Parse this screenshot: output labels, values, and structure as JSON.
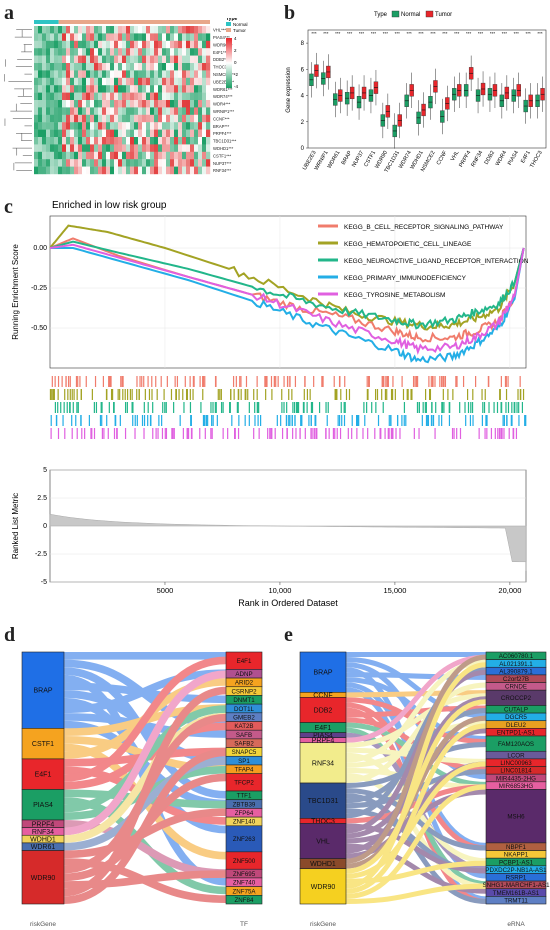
{
  "panels": {
    "a": "a",
    "b": "b",
    "c": "c",
    "d": "d",
    "e": "e"
  },
  "heatmap": {
    "legend_title": "Type",
    "legend_normal": "Normal",
    "legend_tumor": "Tumor",
    "scale_ticks": [
      "4",
      "2",
      "0",
      "-2",
      "-4"
    ],
    "genes": [
      "VHL***",
      "PIAS4***",
      "WDR90***",
      "E4F1***",
      "DDB2**",
      "THOC3***",
      "NSMCE2***",
      "UBE2E3***",
      "WDR61***",
      "WDR74***",
      "WDR4***",
      "WRNIP1***",
      "CCNF***",
      "BRAP***",
      "PRPF4***",
      "TBC1D31***",
      "WDHD1***",
      "CSTF1***",
      "NUP37***",
      "RNF34***"
    ],
    "colors": {
      "high": "#e8262b",
      "mid": "#ffffff",
      "low": "#1b9e64",
      "normal": "#2ec4c4",
      "tumor": "#e8a78a"
    }
  },
  "boxplot": {
    "legend_title": "Type",
    "legend_normal": "Normal",
    "legend_tumor": "Tumor",
    "colors": {
      "normal": "#1b9e64",
      "tumor": "#e8262b"
    }
  },
  "chart_data": [
    {
      "type": "box",
      "ylabel": "Gene expression",
      "ylim": [
        0,
        9
      ],
      "yticks": [
        "0",
        "2",
        "4",
        "6",
        "8"
      ],
      "categories": [
        "UBE2E3",
        "WRNIP1",
        "WDR61",
        "BRAP",
        "NUP37",
        "CSTF1",
        "WDR90",
        "TBC1D31",
        "WDR74",
        "WDHD1",
        "NSMCE2",
        "CCNF",
        "VHL",
        "PRPF4",
        "RNF34",
        "DDB2",
        "WDR4",
        "PIAS4",
        "E4F1",
        "THOC3"
      ],
      "significance": "***",
      "series": [
        {
          "name": "Normal",
          "medians": [
            5.2,
            5.3,
            3.7,
            3.8,
            3.5,
            4.0,
            2.1,
            1.3,
            3.6,
            2.3,
            3.5,
            2.4,
            4.1,
            4.4,
            4.0,
            4.1,
            3.6,
            4.0,
            3.2,
            3.6
          ]
        },
        {
          "name": "Tumor",
          "medians": [
            5.9,
            5.8,
            4.0,
            4.2,
            4.2,
            4.6,
            2.8,
            2.1,
            4.4,
            2.9,
            4.7,
            3.4,
            4.4,
            5.7,
            4.5,
            4.4,
            4.2,
            4.4,
            3.6,
            4.1
          ]
        }
      ]
    },
    {
      "type": "line",
      "title": "Enriched in low risk group",
      "ylabel": "Running Enrichment Score",
      "ylabel2": "Ranked List Metric",
      "xlabel": "Rank in Ordered Dataset",
      "x_ticks": [
        "5000",
        "10,000",
        "15,000",
        "20,000"
      ],
      "y_ticks": [
        "0.00",
        "-0.25",
        "-0.50"
      ],
      "y2_ticks": [
        "5",
        "2.5",
        "0",
        "-2.5",
        "-5"
      ],
      "xlim": [
        0,
        20700
      ],
      "ylim": [
        -0.75,
        0.2
      ],
      "series": [
        {
          "name": "KEGG_B_CELL_RECEPTOR_SIGNALING_PATHWAY",
          "color": "#f07c6c",
          "x": [
            0,
            1000,
            3000,
            6000,
            9000,
            11000,
            13000,
            15000,
            16000,
            17500,
            18500,
            19500,
            20200,
            20600
          ],
          "y": [
            0.0,
            0.06,
            -0.05,
            -0.18,
            -0.3,
            -0.38,
            -0.44,
            -0.52,
            -0.56,
            -0.56,
            -0.52,
            -0.46,
            -0.3,
            0.0
          ]
        },
        {
          "name": "KEGG_HEMATOPOIETIC_CELL_LINEAGE",
          "color": "#a3a324",
          "x": [
            0,
            800,
            2500,
            5000,
            8000,
            11000,
            13000,
            15000,
            16500,
            17500,
            18500,
            19500,
            20200,
            20600
          ],
          "y": [
            0.0,
            0.14,
            0.1,
            0.0,
            -0.14,
            -0.3,
            -0.4,
            -0.46,
            -0.49,
            -0.48,
            -0.44,
            -0.38,
            -0.22,
            0.0
          ]
        },
        {
          "name": "KEGG_NEUROACTIVE_LIGAND_RECEPTOR_INTERACTION",
          "color": "#22b68a",
          "x": [
            0,
            1000,
            3000,
            6000,
            9000,
            11000,
            13000,
            15000,
            16000,
            17500,
            18500,
            19500,
            20200,
            20600
          ],
          "y": [
            0.0,
            0.04,
            -0.03,
            -0.13,
            -0.25,
            -0.33,
            -0.4,
            -0.45,
            -0.48,
            -0.45,
            -0.4,
            -0.35,
            -0.22,
            0.0
          ]
        },
        {
          "name": "KEGG_PRIMARY_IMMUNODEFICIENCY",
          "color": "#23aee6",
          "x": [
            0,
            1000,
            3000,
            6000,
            9000,
            11000,
            13000,
            15000,
            16000,
            17500,
            18500,
            19500,
            20200,
            20600
          ],
          "y": [
            0.0,
            0.0,
            -0.08,
            -0.2,
            -0.34,
            -0.45,
            -0.55,
            -0.64,
            -0.7,
            -0.68,
            -0.6,
            -0.5,
            -0.32,
            0.0
          ]
        },
        {
          "name": "KEGG_TYROSINE_METABOLISM",
          "color": "#e060e0",
          "x": [
            0,
            1000,
            3000,
            6000,
            9000,
            11000,
            13000,
            15000,
            16000,
            17500,
            18500,
            19500,
            20200,
            20600
          ],
          "y": [
            0.0,
            0.02,
            -0.06,
            -0.18,
            -0.3,
            -0.4,
            -0.5,
            -0.58,
            -0.63,
            -0.62,
            -0.56,
            -0.47,
            -0.3,
            0.0
          ]
        }
      ]
    }
  ],
  "sankey_d": {
    "left_label": "riskGene",
    "right_label": "TF",
    "left": [
      {
        "name": "BRAP",
        "color": "#1f6fe6",
        "weight": 10
      },
      {
        "name": "CSTF1",
        "color": "#f5a31f",
        "weight": 4
      },
      {
        "name": "E4F1",
        "color": "#e8262b",
        "weight": 4
      },
      {
        "name": "PIAS4",
        "color": "#1b9e64",
        "weight": 4
      },
      {
        "name": "PRPF4",
        "color": "#c0487a",
        "weight": 1
      },
      {
        "name": "RNF34",
        "color": "#e65fa0",
        "weight": 1
      },
      {
        "name": "WDHD1",
        "color": "#f0d35c",
        "weight": 1
      },
      {
        "name": "WDR61",
        "color": "#4a6fae",
        "weight": 1
      },
      {
        "name": "WDR90",
        "color": "#d62a2a",
        "weight": 7
      }
    ],
    "right": [
      {
        "name": "E4F1",
        "color": "#e8262b",
        "weight": 2
      },
      {
        "name": "ADNP",
        "color": "#b05090",
        "weight": 1
      },
      {
        "name": "ARID2",
        "color": "#f5a31f",
        "weight": 1
      },
      {
        "name": "CSRNP2",
        "color": "#f5c838",
        "weight": 1
      },
      {
        "name": "DNMT1",
        "color": "#1b9e64",
        "weight": 1
      },
      {
        "name": "DOT1L",
        "color": "#2f8fd8",
        "weight": 1
      },
      {
        "name": "GMEB2",
        "color": "#5e7fc4",
        "weight": 1
      },
      {
        "name": "KAT2B",
        "color": "#e25b5b",
        "weight": 1
      },
      {
        "name": "SAFB",
        "color": "#c45a8a",
        "weight": 1
      },
      {
        "name": "SAFB2",
        "color": "#d66a5a",
        "weight": 1
      },
      {
        "name": "SNAPC5",
        "color": "#f2d53a",
        "weight": 1
      },
      {
        "name": "SP1",
        "color": "#2f8fd8",
        "weight": 1
      },
      {
        "name": "TFAP4",
        "color": "#f59d1f",
        "weight": 1
      },
      {
        "name": "TFCP2",
        "color": "#e8262b",
        "weight": 2
      },
      {
        "name": "TTF1",
        "color": "#1b9e64",
        "weight": 1
      },
      {
        "name": "ZBTB39",
        "color": "#4a6fae",
        "weight": 1
      },
      {
        "name": "ZFP64",
        "color": "#e65fa0",
        "weight": 1
      },
      {
        "name": "ZNF140",
        "color": "#f0d35c",
        "weight": 1
      },
      {
        "name": "ZNF263",
        "color": "#2a5ab8",
        "weight": 3
      },
      {
        "name": "ZNF500",
        "color": "#e8262b",
        "weight": 2
      },
      {
        "name": "ZNF695",
        "color": "#c0487a",
        "weight": 1
      },
      {
        "name": "ZNF740",
        "color": "#e65fa0",
        "weight": 1
      },
      {
        "name": "ZNF75A",
        "color": "#f5a31f",
        "weight": 1
      },
      {
        "name": "ZNF84",
        "color": "#1b9e64",
        "weight": 1
      }
    ]
  },
  "sankey_e": {
    "left_label": "riskGene",
    "right_label": "eRNA",
    "left": [
      {
        "name": "BRAP",
        "color": "#1f6fe6",
        "weight": 8
      },
      {
        "name": "CCNF",
        "color": "#f5a31f",
        "weight": 1
      },
      {
        "name": "DDB2",
        "color": "#e8262b",
        "weight": 5
      },
      {
        "name": "E4F1",
        "color": "#1b9e64",
        "weight": 2
      },
      {
        "name": "PIAS4",
        "color": "#5e3f8a",
        "weight": 1
      },
      {
        "name": "PRPF4",
        "color": "#e65fa0",
        "weight": 1
      },
      {
        "name": "RNF34",
        "color": "#f2ec8c",
        "weight": 8
      },
      {
        "name": "TBC1D31",
        "color": "#2a4a8a",
        "weight": 7
      },
      {
        "name": "THOC3",
        "color": "#e8262b",
        "weight": 1
      },
      {
        "name": "VHL",
        "color": "#5a2a6a",
        "weight": 7
      },
      {
        "name": "WDHD1",
        "color": "#8a4a2a",
        "weight": 2
      },
      {
        "name": "WDR90",
        "color": "#f5d020",
        "weight": 7
      }
    ],
    "right": [
      {
        "name": "AC060780.1",
        "color": "#1b9e64",
        "weight": 1
      },
      {
        "name": "AL021391.1",
        "color": "#23aee6",
        "weight": 1
      },
      {
        "name": "AL390879.1",
        "color": "#2a6fd8",
        "weight": 1
      },
      {
        "name": "C2orf27B",
        "color": "#b04a5a",
        "weight": 1
      },
      {
        "name": "CRNDE",
        "color": "#c45a8a",
        "weight": 1
      },
      {
        "name": "CROCCP2",
        "color": "#5a3a6a",
        "weight": 2
      },
      {
        "name": "CUTALP",
        "color": "#1b9e64",
        "weight": 1
      },
      {
        "name": "DGCR5",
        "color": "#23aee6",
        "weight": 1
      },
      {
        "name": "DLEU2",
        "color": "#e8a020",
        "weight": 1
      },
      {
        "name": "ENTPD1-AS1",
        "color": "#e8262b",
        "weight": 1
      },
      {
        "name": "FAM120AOS",
        "color": "#1b9e64",
        "weight": 2
      },
      {
        "name": "LCOR",
        "color": "#6a5a9a",
        "weight": 1
      },
      {
        "name": "LINC00963",
        "color": "#e8262b",
        "weight": 1
      },
      {
        "name": "LINC01814",
        "color": "#d62a2a",
        "weight": 1
      },
      {
        "name": "MIR4435-2HG",
        "color": "#c0487a",
        "weight": 1
      },
      {
        "name": "MIR6853HG",
        "color": "#e65fa0",
        "weight": 1
      },
      {
        "name": "MSH6",
        "color": "#5a2a6a",
        "weight": 7
      },
      {
        "name": "NBPF1",
        "color": "#b06040",
        "weight": 1
      },
      {
        "name": "NKAPP1",
        "color": "#f5c838",
        "weight": 1
      },
      {
        "name": "PCBP1-AS1",
        "color": "#1b9e64",
        "weight": 1
      },
      {
        "name": "PDXDC2P-NB1A-AS1",
        "color": "#23aee6",
        "weight": 1
      },
      {
        "name": "RSRP1",
        "color": "#2a6fd8",
        "weight": 1
      },
      {
        "name": "SNHG1-MARCHF1-AS1",
        "color": "#b04a5a",
        "weight": 1
      },
      {
        "name": "TMEM161B-AS1",
        "color": "#5a4aaa",
        "weight": 1
      },
      {
        "name": "TRMT11",
        "color": "#5e7fc4",
        "weight": 1
      }
    ]
  }
}
